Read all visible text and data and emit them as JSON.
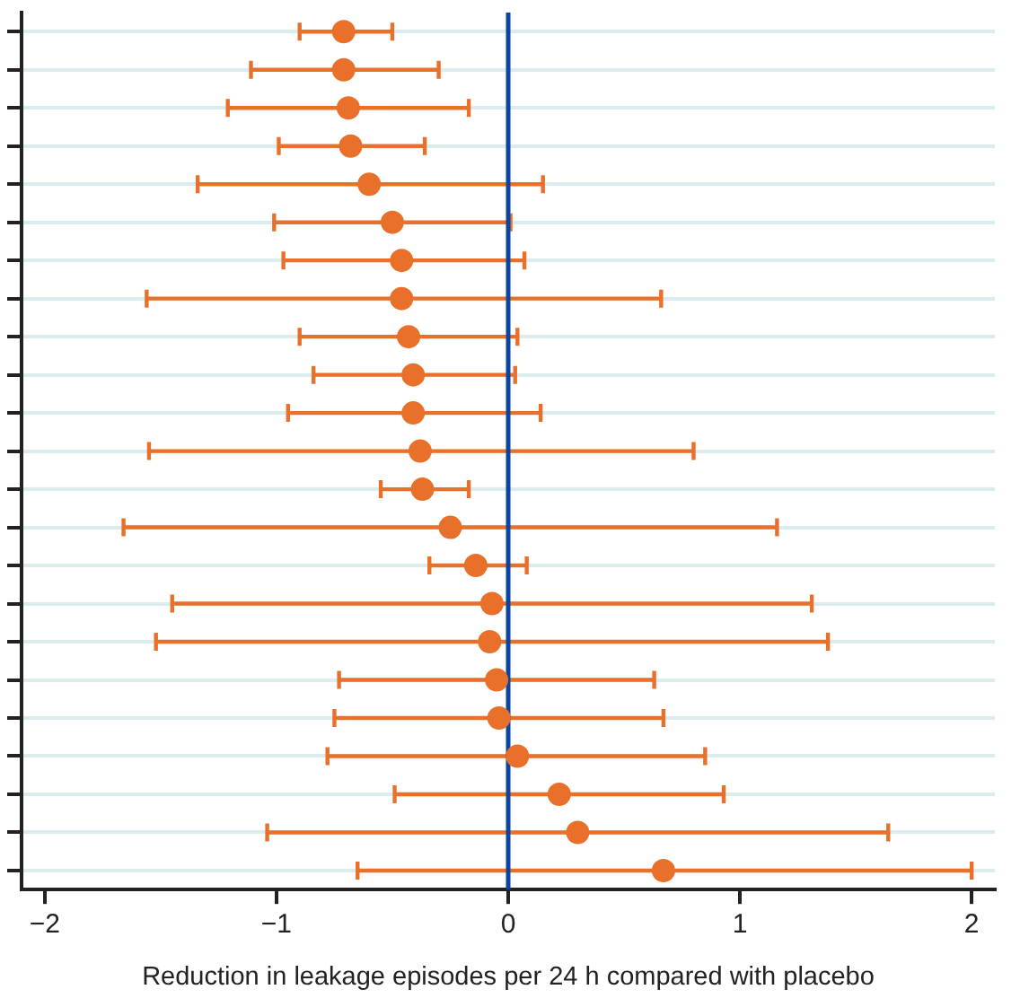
{
  "chart_data": {
    "type": "scatter",
    "orientation": "horizontal",
    "xlabel": "Reduction in leakage episodes per 24 h compared with placebo",
    "categories": [
      null,
      null,
      null,
      null,
      null,
      null,
      null,
      null,
      null,
      null,
      null,
      null,
      null,
      null,
      null,
      null,
      null,
      null,
      null,
      null,
      null,
      null,
      null
    ],
    "values": [
      -0.71,
      -0.71,
      -0.69,
      -0.68,
      -0.6,
      -0.5,
      -0.46,
      -0.46,
      -0.43,
      -0.41,
      -0.41,
      -0.38,
      -0.37,
      -0.25,
      -0.14,
      -0.07,
      -0.08,
      -0.05,
      -0.04,
      0.04,
      0.22,
      0.3,
      0.67
    ],
    "errors": [
      [
        -0.9,
        -0.5
      ],
      [
        -1.11,
        -0.3
      ],
      [
        -1.21,
        -0.17
      ],
      [
        -0.99,
        -0.36
      ],
      [
        -1.34,
        0.15
      ],
      [
        -1.01,
        0.01
      ],
      [
        -0.97,
        0.07
      ],
      [
        -1.56,
        0.66
      ],
      [
        -0.9,
        0.04
      ],
      [
        -0.84,
        0.03
      ],
      [
        -0.95,
        0.14
      ],
      [
        -1.55,
        0.8
      ],
      [
        -0.55,
        -0.17
      ],
      [
        -1.66,
        1.16
      ],
      [
        -0.34,
        0.08
      ],
      [
        -1.45,
        1.31
      ],
      [
        -1.52,
        1.38
      ],
      [
        -0.73,
        0.63
      ],
      [
        -0.75,
        0.67
      ],
      [
        -0.78,
        0.85
      ],
      [
        -0.49,
        0.93
      ],
      [
        -1.04,
        1.64
      ],
      [
        -0.65,
        2.0
      ]
    ],
    "color": "#e8702a",
    "marker": "circle",
    "xlim": [
      -2.1,
      2.1
    ],
    "xticks": [
      {
        "value": -2,
        "label": "−2"
      },
      {
        "value": -1,
        "label": "−1"
      },
      0,
      1,
      2
    ],
    "ref_lines": [
      {
        "axis": "x",
        "value": 0,
        "color": "#0b45a0"
      }
    ],
    "grid": "y",
    "tick_labels": "x"
  }
}
